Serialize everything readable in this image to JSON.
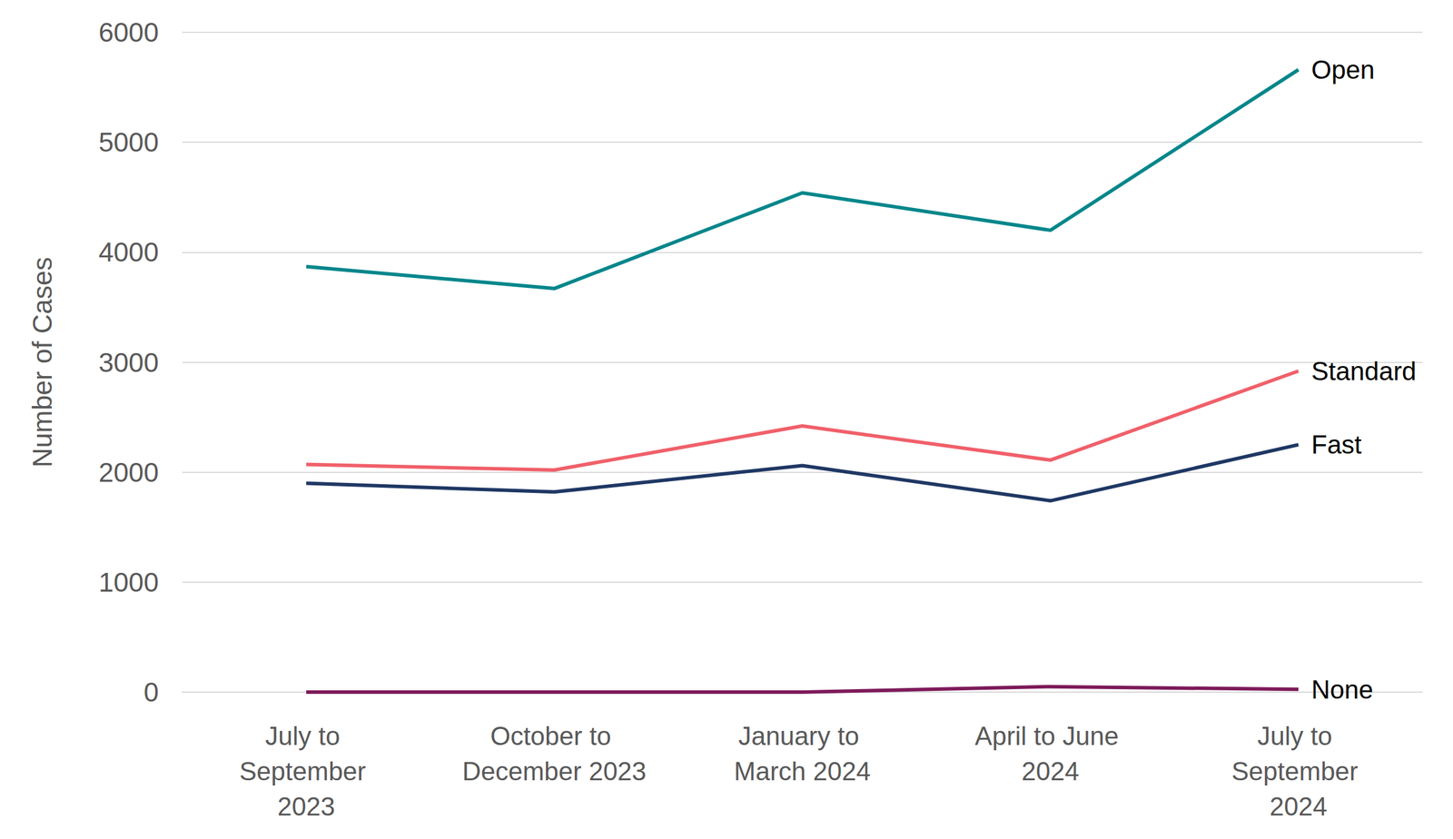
{
  "chart_data": {
    "type": "line",
    "y_label": "Number of Cases",
    "categories": [
      "July to September 2023",
      "October to December 2023",
      "January to March 2024",
      "April to June 2024",
      "July to September 2024"
    ],
    "series": [
      {
        "name": "Open",
        "color": "#00868b",
        "values": [
          3870,
          3670,
          4540,
          4200,
          5660
        ]
      },
      {
        "name": "Standard",
        "color": "#f0606a",
        "values": [
          2070,
          2020,
          2420,
          2110,
          2920
        ]
      },
      {
        "name": "Fast",
        "color": "#1f3864",
        "values": [
          1900,
          1820,
          2060,
          1740,
          2250
        ]
      },
      {
        "name": "None",
        "color": "#7d1a5a",
        "values": [
          0,
          0,
          0,
          50,
          25
        ]
      }
    ],
    "ylim": [
      0,
      6000
    ],
    "yticks": [
      0,
      1000,
      2000,
      3000,
      4000,
      5000,
      6000
    ],
    "grid": true
  }
}
